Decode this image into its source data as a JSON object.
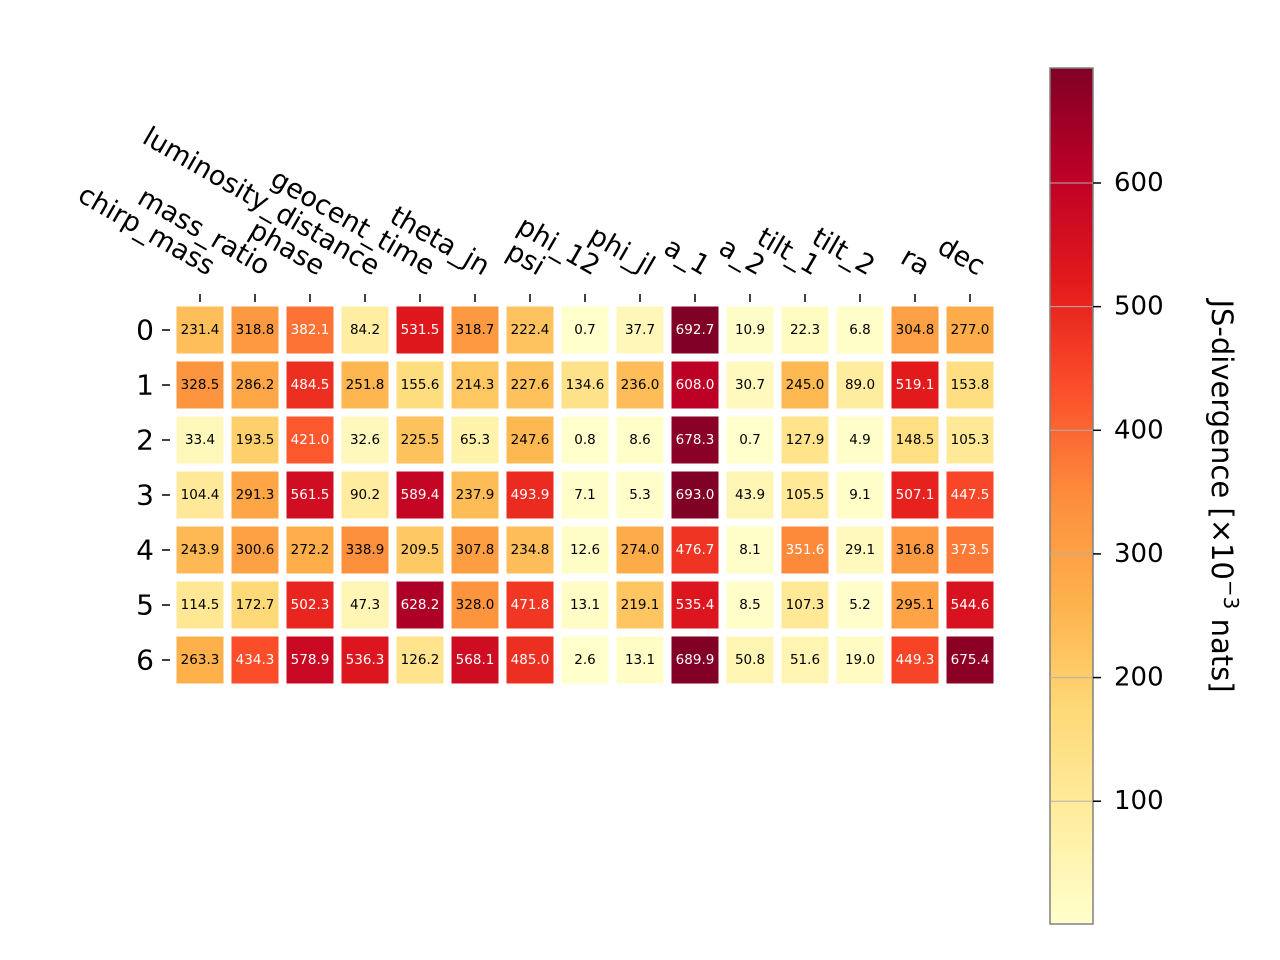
{
  "chart_data": {
    "type": "heatmap",
    "columns": [
      "chirp_mass",
      "mass_ratio",
      "phase",
      "luminosity_distance",
      "geocent_time",
      "theta_jn",
      "psi",
      "phi_12",
      "phi_jl",
      "a_1",
      "a_2",
      "tilt_1",
      "tilt_2",
      "ra",
      "dec"
    ],
    "rows": [
      "0",
      "1",
      "2",
      "3",
      "4",
      "5",
      "6"
    ],
    "values": [
      [
        231.4,
        318.8,
        382.1,
        84.2,
        531.5,
        318.7,
        222.4,
        0.7,
        37.7,
        692.7,
        10.9,
        22.3,
        6.8,
        304.8,
        277.0
      ],
      [
        328.5,
        286.2,
        484.5,
        251.8,
        155.6,
        214.3,
        227.6,
        134.6,
        236.0,
        608.0,
        30.7,
        245.0,
        89.0,
        519.1,
        153.8
      ],
      [
        33.4,
        193.5,
        421.0,
        32.6,
        225.5,
        65.3,
        247.6,
        0.8,
        8.6,
        678.3,
        0.7,
        127.9,
        4.9,
        148.5,
        105.3
      ],
      [
        104.4,
        291.3,
        561.5,
        90.2,
        589.4,
        237.9,
        493.9,
        7.1,
        5.3,
        693.0,
        43.9,
        105.5,
        9.1,
        507.1,
        447.5
      ],
      [
        243.9,
        300.6,
        272.2,
        338.9,
        209.5,
        307.8,
        234.8,
        12.6,
        274.0,
        476.7,
        8.1,
        351.6,
        29.1,
        316.8,
        373.5
      ],
      [
        114.5,
        172.7,
        502.3,
        47.3,
        628.2,
        328.0,
        471.8,
        13.1,
        219.1,
        535.4,
        8.5,
        107.3,
        5.2,
        295.1,
        544.6
      ],
      [
        263.3,
        434.3,
        578.9,
        536.3,
        126.2,
        568.1,
        485.0,
        2.6,
        13.1,
        689.9,
        50.8,
        51.6,
        19.0,
        449.3,
        675.4
      ]
    ],
    "value_labels": [
      [
        "231.4",
        "318.8",
        "382.1",
        "84.2",
        "531.5",
        "318.7",
        "222.4",
        "0.7",
        "37.7",
        "692.7",
        "10.9",
        "22.3",
        "6.8",
        "304.8",
        "277.0"
      ],
      [
        "328.5",
        "286.2",
        "484.5",
        "251.8",
        "155.6",
        "214.3",
        "227.6",
        "134.6",
        "236.0",
        "608.0",
        "30.7",
        "245.0",
        "89.0",
        "519.1",
        "153.8"
      ],
      [
        "33.4",
        "193.5",
        "421.0",
        "32.6",
        "225.5",
        "65.3",
        "247.6",
        "0.8",
        "8.6",
        "678.3",
        "0.7",
        "127.9",
        "4.9",
        "148.5",
        "105.3"
      ],
      [
        "104.4",
        "291.3",
        "561.5",
        "90.2",
        "589.4",
        "237.9",
        "493.9",
        "7.1",
        "5.3",
        "693.0",
        "43.9",
        "105.5",
        "9.1",
        "507.1",
        "447.5"
      ],
      [
        "243.9",
        "300.6",
        "272.2",
        "338.9",
        "209.5",
        "307.8",
        "234.8",
        "12.6",
        "274.0",
        "476.7",
        "8.1",
        "351.6",
        "29.1",
        "316.8",
        "373.5"
      ],
      [
        "114.5",
        "172.7",
        "502.3",
        "47.3",
        "628.2",
        "328.0",
        "471.8",
        "13.1",
        "219.1",
        "535.4",
        "8.5",
        "107.3",
        "5.2",
        "295.1",
        "544.6"
      ],
      [
        "263.3",
        "434.3",
        "578.9",
        "536.3",
        "126.2",
        "568.1",
        "485.0",
        "2.6",
        "13.1",
        "689.9",
        "50.8",
        "51.6",
        "19.0",
        "449.3",
        "675.4"
      ]
    ],
    "colormap": "YlOrRd",
    "colormap_stops": [
      "#ffffcc",
      "#ffeda0",
      "#fed976",
      "#feb24c",
      "#fd8d3c",
      "#fc4e2a",
      "#e31a1c",
      "#bd0026",
      "#800026"
    ],
    "vmin": 0.7,
    "vmax": 693.0,
    "colorbar": {
      "label": "JS-divergence [×10",
      "label_exponent": "−3",
      "label_suffix": " nats]",
      "ticks": [
        100,
        200,
        300,
        400,
        500,
        600
      ],
      "tick_labels": [
        "100",
        "200",
        "300",
        "400",
        "500",
        "600"
      ]
    }
  }
}
